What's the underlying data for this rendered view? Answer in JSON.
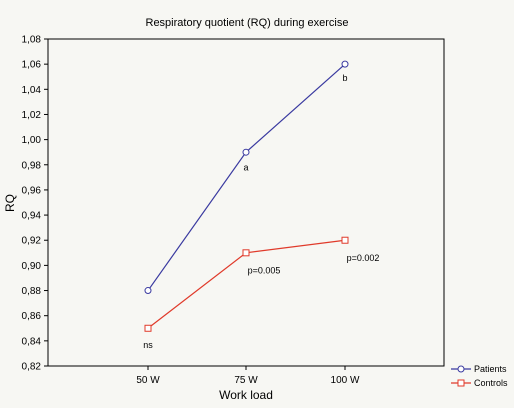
{
  "chart_data": {
    "type": "line",
    "title": "Respiratory quotient (RQ) during exercise",
    "xlabel": "Work load",
    "ylabel": "RQ",
    "categories": [
      "50 W",
      "75 W",
      "100 W"
    ],
    "ylim": [
      0.82,
      1.08
    ],
    "yticks": [
      "0,82",
      "0,84",
      "0,86",
      "0,88",
      "0,90",
      "0,92",
      "0,94",
      "0,96",
      "0,98",
      "1,00",
      "1,02",
      "1,04",
      "1,06",
      "1,08"
    ],
    "grid": false,
    "legend_position": "bottom-right",
    "series": [
      {
        "name": "Patients",
        "values": [
          0.88,
          0.99,
          1.06
        ],
        "color": "#3a3aa0",
        "marker": "circle"
      },
      {
        "name": "Controls",
        "values": [
          0.85,
          0.91,
          0.92
        ],
        "color": "#e03a2a",
        "marker": "square"
      }
    ],
    "annotations": [
      {
        "text": "ns",
        "category": "50 W",
        "y": 0.844
      },
      {
        "text": "a",
        "category": "75 W",
        "y": 0.985
      },
      {
        "text": "b",
        "category": "100 W",
        "y": 1.056
      },
      {
        "text": "p=0.005",
        "category": "75 W",
        "y": 0.903
      },
      {
        "text": "p=0.002",
        "category": "100 W",
        "y": 0.913
      }
    ]
  }
}
